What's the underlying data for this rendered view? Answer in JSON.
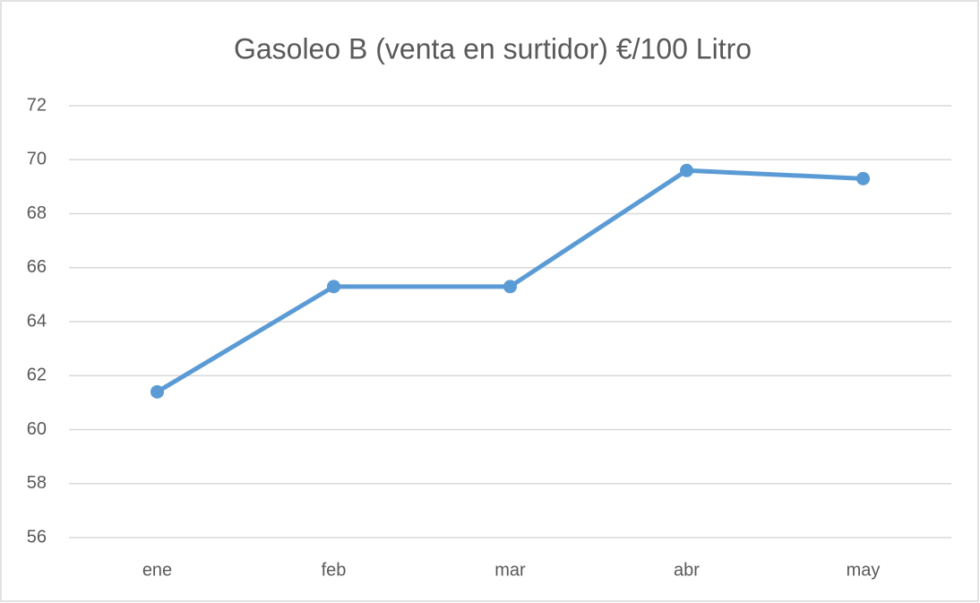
{
  "chart_data": {
    "type": "line",
    "title": "Gasoleo B (venta en surtidor) €/100 Litro",
    "categories": [
      "ene",
      "feb",
      "mar",
      "abr",
      "may"
    ],
    "series": [
      {
        "name": "Gasoleo B",
        "color": "#5b9bd5",
        "values": [
          61.4,
          65.3,
          65.3,
          69.6,
          69.3
        ]
      }
    ],
    "ylim": [
      56,
      72
    ],
    "yticks": [
      56,
      58,
      60,
      62,
      64,
      66,
      68,
      70,
      72
    ],
    "grid": true
  }
}
